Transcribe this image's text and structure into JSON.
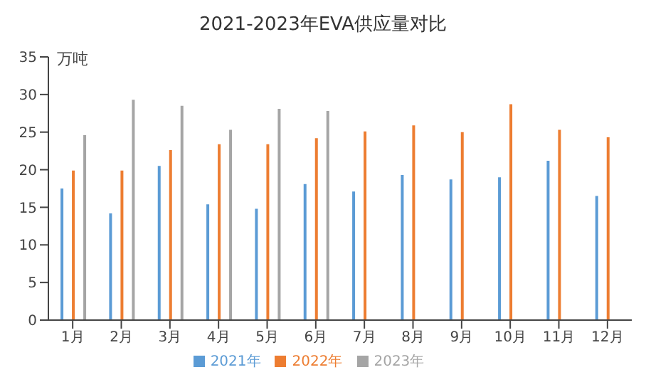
{
  "chart_data": {
    "type": "bar",
    "title": "2021-2023年EVA供应量对比",
    "ylabel": "万吨",
    "categories": [
      "1月",
      "2月",
      "3月",
      "4月",
      "5月",
      "6月",
      "7月",
      "8月",
      "9月",
      "10月",
      "11月",
      "12月"
    ],
    "series": [
      {
        "name": "2021年",
        "color": "#5b9bd5",
        "values": [
          17.5,
          14.2,
          20.5,
          15.4,
          14.8,
          18.1,
          17.1,
          19.3,
          18.7,
          19.0,
          21.2,
          16.5
        ]
      },
      {
        "name": "2022年",
        "color": "#ed7d31",
        "values": [
          19.9,
          19.9,
          22.6,
          23.4,
          23.4,
          24.2,
          25.1,
          25.9,
          25.0,
          28.7,
          25.3,
          24.3
        ]
      },
      {
        "name": "2023年",
        "color": "#a5a5a5",
        "values": [
          24.6,
          29.3,
          28.5,
          25.3,
          28.1,
          27.8,
          null,
          null,
          null,
          null,
          null,
          null
        ]
      }
    ],
    "ylim": [
      0,
      35
    ],
    "yticks": [
      0,
      5,
      10,
      15,
      20,
      25,
      30,
      35
    ],
    "grid": false,
    "legend": "bottom"
  }
}
